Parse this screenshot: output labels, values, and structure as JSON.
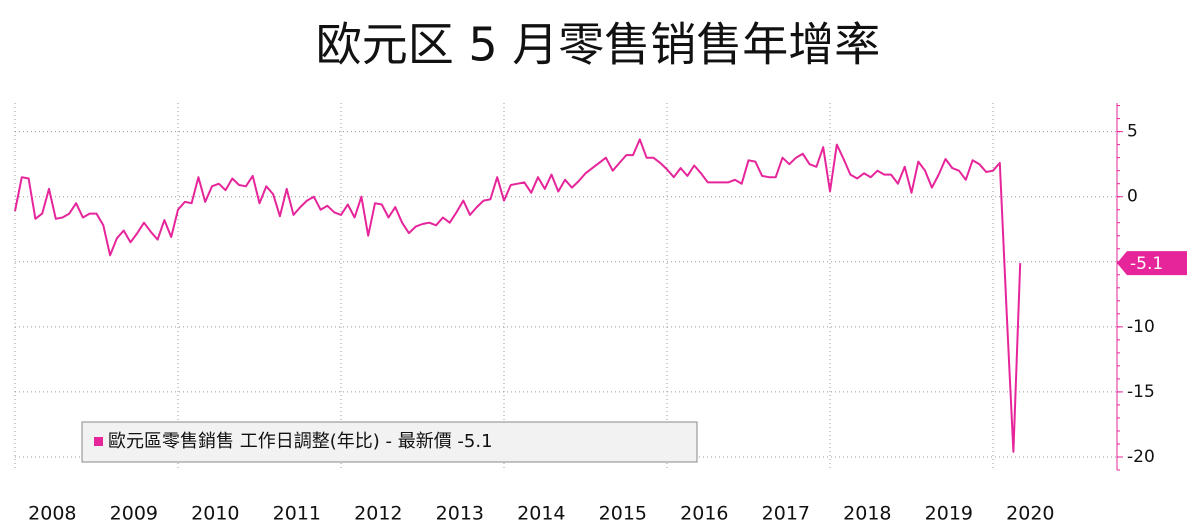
{
  "chart_data": {
    "type": "line",
    "title": "欧元区 5 月零售销售年增率",
    "categories": [
      "2008",
      null,
      null,
      null,
      null,
      null,
      null,
      null,
      null,
      null,
      null,
      null,
      "2009",
      null,
      null,
      null,
      null,
      null,
      null,
      null,
      null,
      null,
      null,
      null,
      "2010",
      null,
      null,
      null,
      null,
      null,
      null,
      null,
      null,
      null,
      null,
      null,
      "2011",
      null,
      null,
      null,
      null,
      null,
      null,
      null,
      null,
      null,
      null,
      null,
      "2012",
      null,
      null,
      null,
      null,
      null,
      null,
      null,
      null,
      null,
      null,
      null,
      "2013",
      null,
      null,
      null,
      null,
      null,
      null,
      null,
      null,
      null,
      null,
      null,
      "2014",
      null,
      null,
      null,
      null,
      null,
      null,
      null,
      null,
      null,
      null,
      null,
      "2015",
      null,
      null,
      null,
      null,
      null,
      null,
      null,
      null,
      null,
      null,
      null,
      "2016",
      null,
      null,
      null,
      null,
      null,
      null,
      null,
      null,
      null,
      null,
      null,
      "2017",
      null,
      null,
      null,
      null,
      null,
      null,
      null,
      null,
      null,
      null,
      null,
      "2018",
      null,
      null,
      null,
      null,
      null,
      null,
      null,
      null,
      null,
      null,
      null,
      "2019",
      null,
      null,
      null,
      null,
      null,
      null,
      null,
      null,
      null,
      null,
      null,
      "2020",
      null,
      null,
      null,
      null
    ],
    "series": [
      {
        "name": "歐元區零售銷售 工作日調整(年比) - 最新價 -5.1",
        "color": "#e6259b",
        "values": [
          -1.1,
          1.5,
          1.4,
          -1.7,
          -1.3,
          0.6,
          -1.7,
          -1.6,
          -1.3,
          -0.5,
          -1.6,
          -1.3,
          -1.3,
          -2.2,
          -4.5,
          -3.2,
          -2.6,
          -3.5,
          -2.8,
          -2.0,
          -2.7,
          -3.3,
          -1.8,
          -3.1,
          -1.0,
          -0.4,
          -0.5,
          1.5,
          -0.4,
          0.8,
          1.0,
          0.5,
          1.4,
          0.9,
          0.8,
          1.6,
          -0.5,
          0.8,
          0.2,
          -1.5,
          0.6,
          -1.4,
          -0.8,
          -0.3,
          0.0,
          -1.0,
          -0.7,
          -1.2,
          -1.4,
          -0.6,
          -1.6,
          0.0,
          -3.0,
          -0.5,
          -0.6,
          -1.6,
          -0.8,
          -2.0,
          -2.8,
          -2.3,
          -2.1,
          -2.0,
          -2.2,
          -1.6,
          -2.0,
          -1.2,
          -0.3,
          -1.4,
          -0.8,
          -0.3,
          -0.2,
          1.5,
          -0.3,
          0.9,
          1.0,
          1.1,
          0.3,
          1.5,
          0.6,
          1.7,
          0.4,
          1.3,
          0.7,
          1.2,
          1.8,
          2.2,
          2.6,
          3.0,
          2.0,
          2.6,
          3.2,
          3.2,
          4.4,
          3.0,
          3.0,
          2.6,
          2.1,
          1.5,
          2.2,
          1.6,
          2.4,
          1.8,
          1.1,
          1.1,
          1.1,
          1.1,
          1.3,
          1.0,
          2.8,
          2.7,
          1.6,
          1.5,
          1.5,
          3.0,
          2.5,
          3.0,
          3.3,
          2.5,
          2.3,
          3.8,
          0.4,
          4.0,
          2.9,
          1.7,
          1.4,
          1.8,
          1.5,
          2.0,
          1.7,
          1.7,
          1.0,
          2.3,
          0.3,
          2.7,
          2.0,
          0.7,
          1.7,
          2.9,
          2.2,
          2.0,
          1.3,
          2.8,
          2.5,
          1.9,
          2.0,
          2.6,
          -8.8,
          -19.6,
          -5.1
        ]
      }
    ],
    "ylim": [
      -21,
      7.2
    ],
    "yticks": [
      5,
      0,
      -5,
      -10,
      -15,
      -20
    ],
    "grid": true
  }
}
